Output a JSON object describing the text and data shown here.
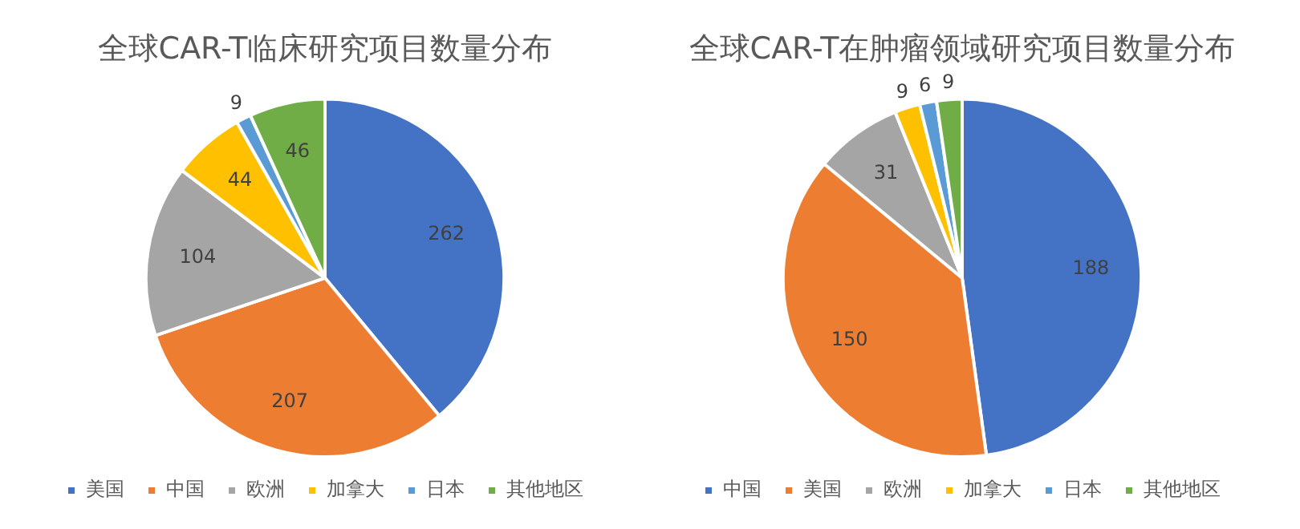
{
  "chart_data": [
    {
      "type": "pie",
      "title": "全球CAR-T临床研究项目数量分布",
      "categories": [
        "美国",
        "中国",
        "欧洲",
        "加拿大",
        "日本",
        "其他地区"
      ],
      "values": [
        262,
        207,
        104,
        44,
        9,
        46
      ],
      "colors": [
        "#4472c4",
        "#ed7d31",
        "#a5a5a5",
        "#ffc000",
        "#5b9bd5",
        "#70ad47"
      ],
      "data_labels": true,
      "legend": "bottom"
    },
    {
      "type": "pie",
      "title": "全球CAR-T在肿瘤领域研究项目数量分布",
      "categories": [
        "中国",
        "美国",
        "欧洲",
        "加拿大",
        "日本",
        "其他地区"
      ],
      "values": [
        188,
        150,
        31,
        9,
        6,
        9
      ],
      "colors": [
        "#4472c4",
        "#ed7d31",
        "#a5a5a5",
        "#ffc000",
        "#5b9bd5",
        "#70ad47"
      ],
      "data_labels": true,
      "legend": "bottom"
    }
  ]
}
